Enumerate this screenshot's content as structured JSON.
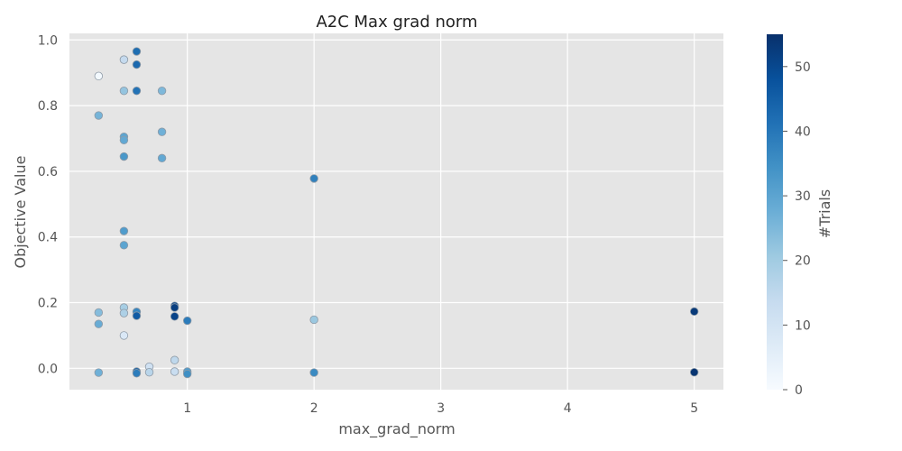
{
  "chart_data": {
    "type": "scatter",
    "title": "A2C Max grad norm",
    "xlabel": "max_grad_norm",
    "ylabel": "Objective Value",
    "xlim": [
      0.07,
      5.23
    ],
    "ylim": [
      -0.065,
      1.02
    ],
    "xticks": [
      1,
      2,
      3,
      4,
      5
    ],
    "yticks": [
      0.0,
      0.2,
      0.4,
      0.6,
      0.8,
      1.0
    ],
    "xtick_labels": [
      "1",
      "2",
      "3",
      "4",
      "5"
    ],
    "ytick_labels": [
      "0.0",
      "0.2",
      "0.4",
      "0.6",
      "0.8",
      "1.0"
    ],
    "grid": true,
    "colorbar": {
      "label": "#Trials",
      "min": 0,
      "max": 55,
      "ticks": [
        0,
        10,
        20,
        30,
        40,
        50
      ],
      "tick_labels": [
        "0",
        "10",
        "20",
        "30",
        "40",
        "50"
      ],
      "colormap": "Blues"
    },
    "points": [
      {
        "x": 0.3,
        "y": 0.89,
        "trial": 1
      },
      {
        "x": 0.3,
        "y": 0.77,
        "trial": 26
      },
      {
        "x": 0.3,
        "y": 0.17,
        "trial": 24
      },
      {
        "x": 0.3,
        "y": 0.135,
        "trial": 28
      },
      {
        "x": 0.3,
        "y": -0.013,
        "trial": 27
      },
      {
        "x": 0.5,
        "y": 0.94,
        "trial": 14
      },
      {
        "x": 0.5,
        "y": 0.845,
        "trial": 22
      },
      {
        "x": 0.5,
        "y": 0.705,
        "trial": 30
      },
      {
        "x": 0.5,
        "y": 0.695,
        "trial": 29
      },
      {
        "x": 0.5,
        "y": 0.645,
        "trial": 33
      },
      {
        "x": 0.5,
        "y": 0.418,
        "trial": 32
      },
      {
        "x": 0.5,
        "y": 0.375,
        "trial": 30
      },
      {
        "x": 0.5,
        "y": 0.185,
        "trial": 19
      },
      {
        "x": 0.5,
        "y": 0.168,
        "trial": 18
      },
      {
        "x": 0.5,
        "y": 0.1,
        "trial": 8
      },
      {
        "x": 0.6,
        "y": 0.965,
        "trial": 42
      },
      {
        "x": 0.6,
        "y": 0.925,
        "trial": 43
      },
      {
        "x": 0.6,
        "y": 0.845,
        "trial": 41
      },
      {
        "x": 0.6,
        "y": 0.172,
        "trial": 37
      },
      {
        "x": 0.6,
        "y": 0.16,
        "trial": 46
      },
      {
        "x": 0.6,
        "y": -0.01,
        "trial": 45
      },
      {
        "x": 0.6,
        "y": -0.015,
        "trial": 39
      },
      {
        "x": 0.7,
        "y": 0.005,
        "trial": 11
      },
      {
        "x": 0.7,
        "y": -0.012,
        "trial": 16
      },
      {
        "x": 0.8,
        "y": 0.845,
        "trial": 25
      },
      {
        "x": 0.8,
        "y": 0.72,
        "trial": 27
      },
      {
        "x": 0.8,
        "y": 0.64,
        "trial": 29
      },
      {
        "x": 0.9,
        "y": 0.19,
        "trial": 50
      },
      {
        "x": 0.9,
        "y": 0.185,
        "trial": 52
      },
      {
        "x": 0.9,
        "y": 0.158,
        "trial": 51
      },
      {
        "x": 0.9,
        "y": 0.025,
        "trial": 15
      },
      {
        "x": 0.9,
        "y": -0.01,
        "trial": 13
      },
      {
        "x": 1.0,
        "y": 0.145,
        "trial": 39
      },
      {
        "x": 1.0,
        "y": -0.01,
        "trial": 32
      },
      {
        "x": 1.0,
        "y": -0.017,
        "trial": 35
      },
      {
        "x": 2.0,
        "y": 0.578,
        "trial": 38
      },
      {
        "x": 2.0,
        "y": 0.148,
        "trial": 21
      },
      {
        "x": 2.0,
        "y": -0.013,
        "trial": 36
      },
      {
        "x": 5.0,
        "y": 0.173,
        "trial": 53
      },
      {
        "x": 5.0,
        "y": -0.012,
        "trial": 54
      }
    ]
  }
}
